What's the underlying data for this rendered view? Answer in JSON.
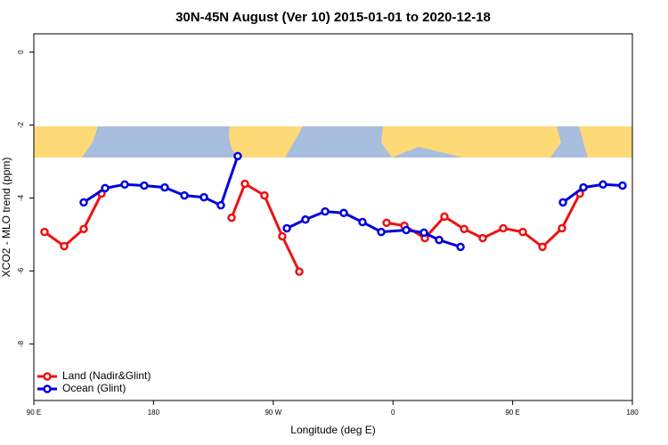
{
  "chart_data": {
    "type": "line",
    "title": "30N-45N August (Ver 10)   2015-01-01 to 2020-12-18",
    "xlabel": "Longitude (deg E)",
    "ylabel": "XCO2 - MLO trend (ppm)",
    "xlim": [
      90,
      540
    ],
    "xticks": [
      {
        "value": 90,
        "label": "90 E"
      },
      {
        "value": 180,
        "label": "180"
      },
      {
        "value": 270,
        "label": "90 W"
      },
      {
        "value": 360,
        "label": "0"
      },
      {
        "value": 450,
        "label": "90 E"
      },
      {
        "value": 540,
        "label": "180"
      }
    ],
    "ylim": [
      -9.55,
      0.5
    ],
    "yticks": [
      0,
      -2,
      -4,
      -6,
      -8
    ],
    "legend": "bottom-left",
    "series": [
      {
        "name": "Land (Nadir&Glint)",
        "color": "#ee1111",
        "x": [
          98,
          112.8,
          127.5,
          140.9,
          190,
          238.7,
          248.7,
          263.4,
          276.8,
          289.6,
          320,
          355.2,
          368.6,
          384,
          398.7,
          413.5,
          427.5,
          442.9,
          457.6,
          472.4,
          487.1,
          500.5
        ],
        "values": [
          -4.93,
          -5.32,
          -4.85,
          -3.88,
          null,
          -4.54,
          -3.61,
          -3.93,
          -5.05,
          -6.02,
          null,
          -4.68,
          -4.76,
          -5.1,
          -4.51,
          -4.85,
          -5.1,
          -4.83,
          -4.93,
          -5.34,
          -4.83,
          -3.88
        ]
      },
      {
        "name": "Ocean (Glint)",
        "color": "#0000dd",
        "x": [
          127.5,
          143.6,
          158.3,
          173,
          188.4,
          203.2,
          217.9,
          230.6,
          243.3,
          260,
          280.2,
          294.2,
          309,
          323,
          337.1,
          351.2,
          370,
          383.3,
          394.7,
          410.8,
          450,
          487.8,
          503.2,
          517.9,
          532.6
        ],
        "values": [
          -4.12,
          -3.73,
          -3.63,
          -3.66,
          -3.71,
          -3.93,
          -3.98,
          -4.2,
          -2.85,
          null,
          -4.83,
          -4.59,
          -4.37,
          -4.41,
          -4.66,
          -4.93,
          -4.88,
          -4.95,
          -5.15,
          -5.34,
          null,
          -4.12,
          -3.71,
          -3.63,
          -3.66
        ]
      }
    ]
  }
}
